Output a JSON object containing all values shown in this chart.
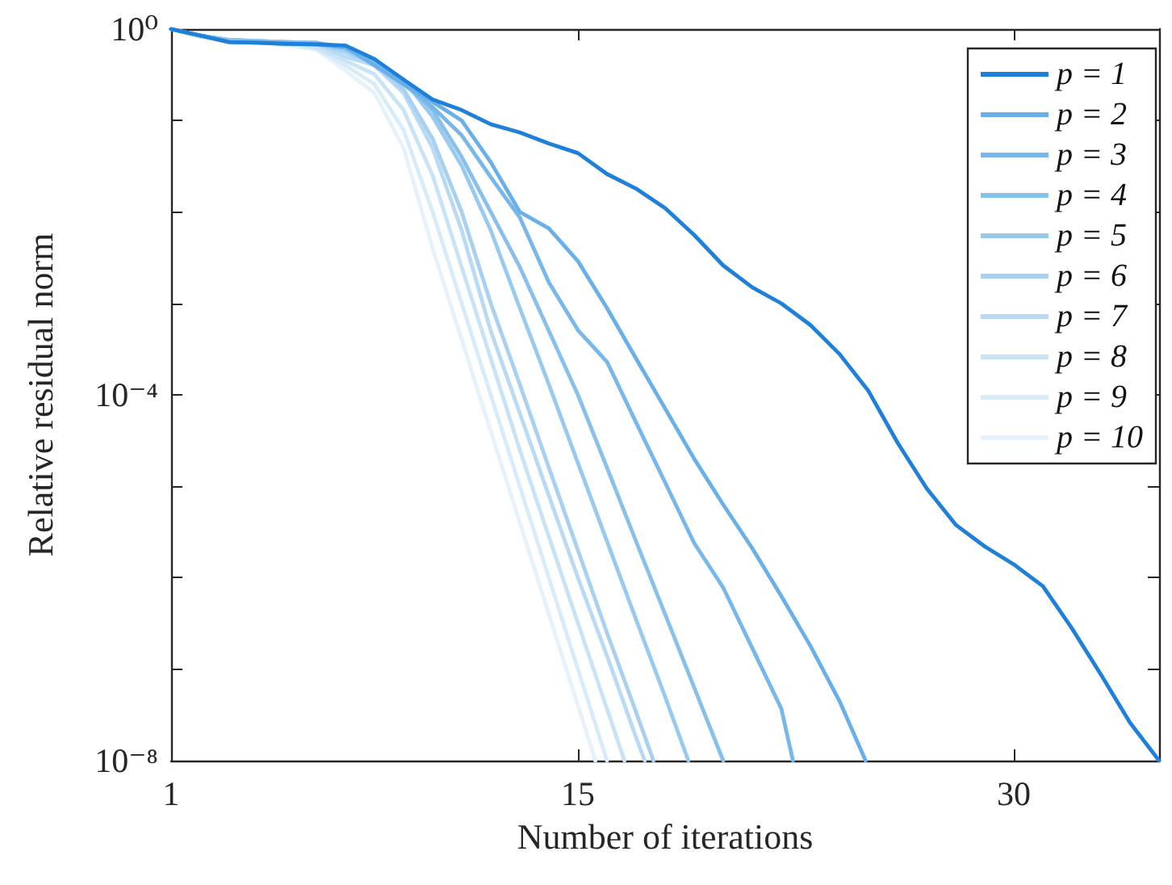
{
  "chart_data": {
    "type": "line",
    "xlabel": "Number of iterations",
    "ylabel": "Relative residual norm",
    "log": "y",
    "grid": false,
    "legend": "top right",
    "marker": "none",
    "line_style": "solid",
    "xlim": [
      1,
      35
    ],
    "xticks": [
      1,
      15,
      30
    ],
    "ylim": [
      1e-08,
      1
    ],
    "yticks": [
      {
        "value": 1,
        "label": "10⁰"
      },
      {
        "value": 0.1,
        "label": null
      },
      {
        "value": 0.01,
        "label": null
      },
      {
        "value": 0.001,
        "label": null
      },
      {
        "value": 0.0001,
        "label": "10⁻⁴"
      },
      {
        "value": 1e-05,
        "label": null
      },
      {
        "value": 1e-06,
        "label": null
      },
      {
        "value": 1e-07,
        "label": null
      },
      {
        "value": 1e-08,
        "label": "10⁻⁸"
      }
    ],
    "series": [
      {
        "name": "p = 1",
        "color": "#1e80d9",
        "x": [
          1,
          2,
          3,
          4,
          5,
          6,
          7,
          8,
          9,
          10,
          11,
          12,
          13,
          14,
          15,
          16,
          17,
          18,
          19,
          20,
          21,
          22,
          23,
          24,
          25,
          26,
          27,
          28,
          29,
          30,
          31,
          32,
          33,
          34,
          35
        ],
        "values": [
          1,
          0.85,
          0.72,
          0.71,
          0.69,
          0.68,
          0.66,
          0.47,
          0.28,
          0.17,
          0.13,
          0.091,
          0.074,
          0.056,
          0.044,
          0.026,
          0.018,
          0.011,
          0.0056,
          0.0026,
          0.0015,
          0.001,
          0.00058,
          0.00028,
          0.00011,
          3e-05,
          9.5e-06,
          3.8e-06,
          2.2e-06,
          1.4e-06,
          8.1e-07,
          2.8e-07,
          8.7e-08,
          2.6e-08,
          1e-08
        ]
      },
      {
        "name": "p = 2",
        "color": "#6ab0e8",
        "x": [
          1,
          2,
          3,
          4,
          5,
          6,
          7,
          8,
          9,
          10,
          11,
          12,
          13,
          14,
          15,
          16,
          17,
          18,
          19,
          20,
          21,
          22,
          23,
          24,
          24.9
        ],
        "values": [
          1,
          0.85,
          0.72,
          0.71,
          0.69,
          0.68,
          0.63,
          0.4,
          0.25,
          0.16,
          0.1,
          0.035,
          0.01,
          0.0066,
          0.0029,
          0.00089,
          0.00025,
          7.1e-05,
          2e-05,
          6.3e-06,
          2.1e-06,
          6.3e-07,
          1.8e-07,
          4.5e-08,
          1e-08
        ]
      },
      {
        "name": "p = 3",
        "color": "#78b7ea",
        "x": [
          1,
          2,
          3,
          4,
          5,
          6,
          7,
          8,
          9,
          10,
          11,
          12,
          13,
          14,
          15,
          16,
          17,
          18,
          19,
          20,
          21,
          22,
          22.4
        ],
        "values": [
          1,
          0.85,
          0.72,
          0.71,
          0.69,
          0.68,
          0.63,
          0.42,
          0.25,
          0.14,
          0.069,
          0.024,
          0.0087,
          0.0017,
          0.00051,
          0.00023,
          5e-05,
          1.1e-05,
          2.4e-06,
          7.8e-07,
          1.7e-07,
          3.7e-08,
          1e-08
        ]
      },
      {
        "name": "p = 4",
        "color": "#88c0ec",
        "x": [
          1,
          2,
          3,
          4,
          5,
          6,
          7,
          8,
          9,
          10,
          11,
          12,
          13,
          14,
          15,
          16,
          17,
          18,
          19,
          20
        ],
        "values": [
          1,
          0.85,
          0.76,
          0.74,
          0.72,
          0.71,
          0.63,
          0.45,
          0.28,
          0.13,
          0.04,
          0.01,
          0.0025,
          0.0005,
          0.0001,
          1.6e-05,
          2.5e-06,
          4e-07,
          6.3e-08,
          1e-08
        ]
      },
      {
        "name": "p = 5",
        "color": "#98c9ef",
        "x": [
          1,
          2,
          3,
          4,
          5,
          6,
          7,
          8,
          9,
          10,
          11,
          12,
          13,
          14,
          15,
          16,
          17,
          18,
          18.8
        ],
        "values": [
          1,
          0.85,
          0.76,
          0.74,
          0.72,
          0.71,
          0.6,
          0.45,
          0.28,
          0.11,
          0.032,
          0.0063,
          0.00089,
          0.00013,
          1.8e-05,
          2.5e-06,
          3.5e-07,
          5e-08,
          1e-08
        ]
      },
      {
        "name": "p = 6",
        "color": "#a8d1f1",
        "x": [
          1,
          2,
          3,
          4,
          5,
          6,
          7,
          8,
          9,
          10,
          11,
          12,
          13,
          14,
          15,
          16,
          17,
          17.6
        ],
        "values": [
          1,
          0.85,
          0.76,
          0.74,
          0.72,
          0.69,
          0.56,
          0.42,
          0.22,
          0.063,
          0.01,
          0.001,
          0.00013,
          1.6e-05,
          2e-06,
          2.5e-07,
          3.4e-08,
          1e-08
        ]
      },
      {
        "name": "p = 7",
        "color": "#b8daf4",
        "x": [
          1,
          2,
          3,
          4,
          5,
          6,
          7,
          8,
          9,
          10,
          11,
          12,
          13,
          14,
          15,
          16,
          17,
          17.3
        ],
        "values": [
          1,
          0.83,
          0.76,
          0.74,
          0.72,
          0.68,
          0.5,
          0.4,
          0.2,
          0.05,
          0.0063,
          0.0005,
          6.3e-05,
          7.9e-06,
          1e-06,
          1.4e-07,
          1.8e-08,
          1e-08
        ]
      },
      {
        "name": "p = 8",
        "color": "#c8e2f6",
        "x": [
          1,
          2,
          3,
          4,
          5,
          6,
          7,
          8,
          9,
          10,
          11,
          12,
          13,
          14,
          15,
          16,
          16.6
        ],
        "values": [
          1,
          0.83,
          0.74,
          0.72,
          0.71,
          0.63,
          0.45,
          0.32,
          0.13,
          0.025,
          0.0025,
          0.00025,
          2.5e-05,
          2.8e-06,
          3.2e-07,
          3.7e-08,
          1e-08
        ]
      },
      {
        "name": "p = 9",
        "color": "#d8ebf9",
        "x": [
          1,
          2,
          3,
          4,
          5,
          6,
          7,
          8,
          9,
          10,
          11,
          12,
          13,
          14,
          15,
          16
        ],
        "values": [
          1,
          0.83,
          0.74,
          0.72,
          0.69,
          0.6,
          0.4,
          0.25,
          0.079,
          0.01,
          0.001,
          0.0001,
          1e-05,
          1e-06,
          1e-07,
          1e-08
        ]
      },
      {
        "name": "p = 10",
        "color": "#e6f2fb",
        "x": [
          1,
          2,
          3,
          4,
          5,
          6,
          7,
          8,
          9,
          10,
          11,
          12,
          13,
          14,
          15,
          15.6
        ],
        "values": [
          1,
          0.83,
          0.72,
          0.71,
          0.66,
          0.6,
          0.35,
          0.2,
          0.05,
          0.004,
          0.0004,
          4e-05,
          4e-06,
          4e-07,
          4e-08,
          1e-08
        ]
      }
    ]
  }
}
